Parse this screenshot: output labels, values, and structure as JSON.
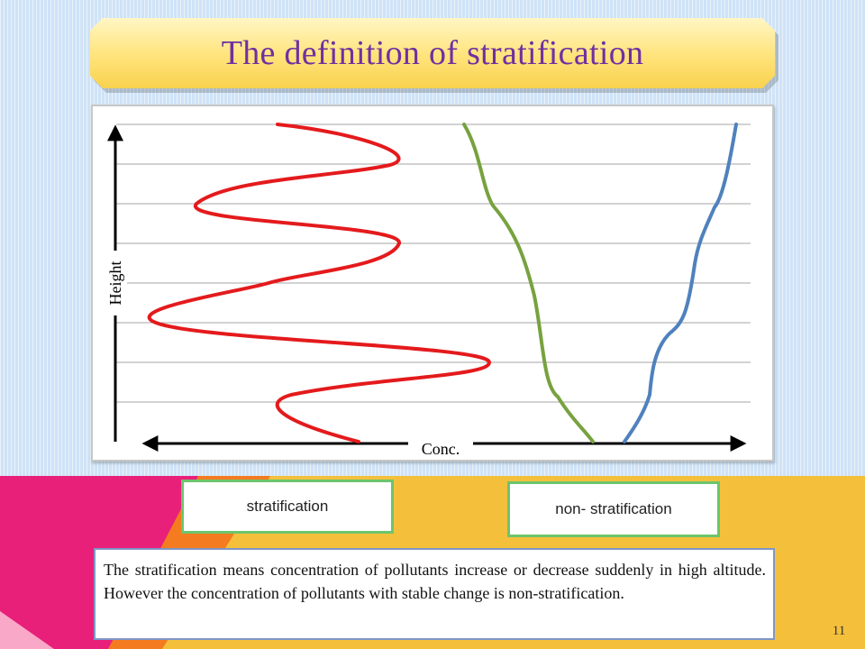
{
  "slide": {
    "title": "The definition of stratification",
    "page_number": "11"
  },
  "chart": {
    "ylabel": "Height",
    "xlabel": "Conc.",
    "grid": "horizontal lines",
    "series": [
      {
        "color": "#e41a1c"
      },
      {
        "color": "#77a23f"
      },
      {
        "color": "#4f81bd"
      }
    ]
  },
  "labels": {
    "stratification": "stratification",
    "non_stratification": "non- stratification"
  },
  "description": "The stratification means concentration of pollutants increase or decrease suddenly in high altitude. However the concentration of pollutants with stable change is non-stratification.",
  "colors": {
    "title_text": "#7030a0",
    "label_border": "#6cc56c",
    "band_pink": "#e8207a",
    "band_orange": "#f47b20",
    "band_yellow": "#f4c03c"
  }
}
